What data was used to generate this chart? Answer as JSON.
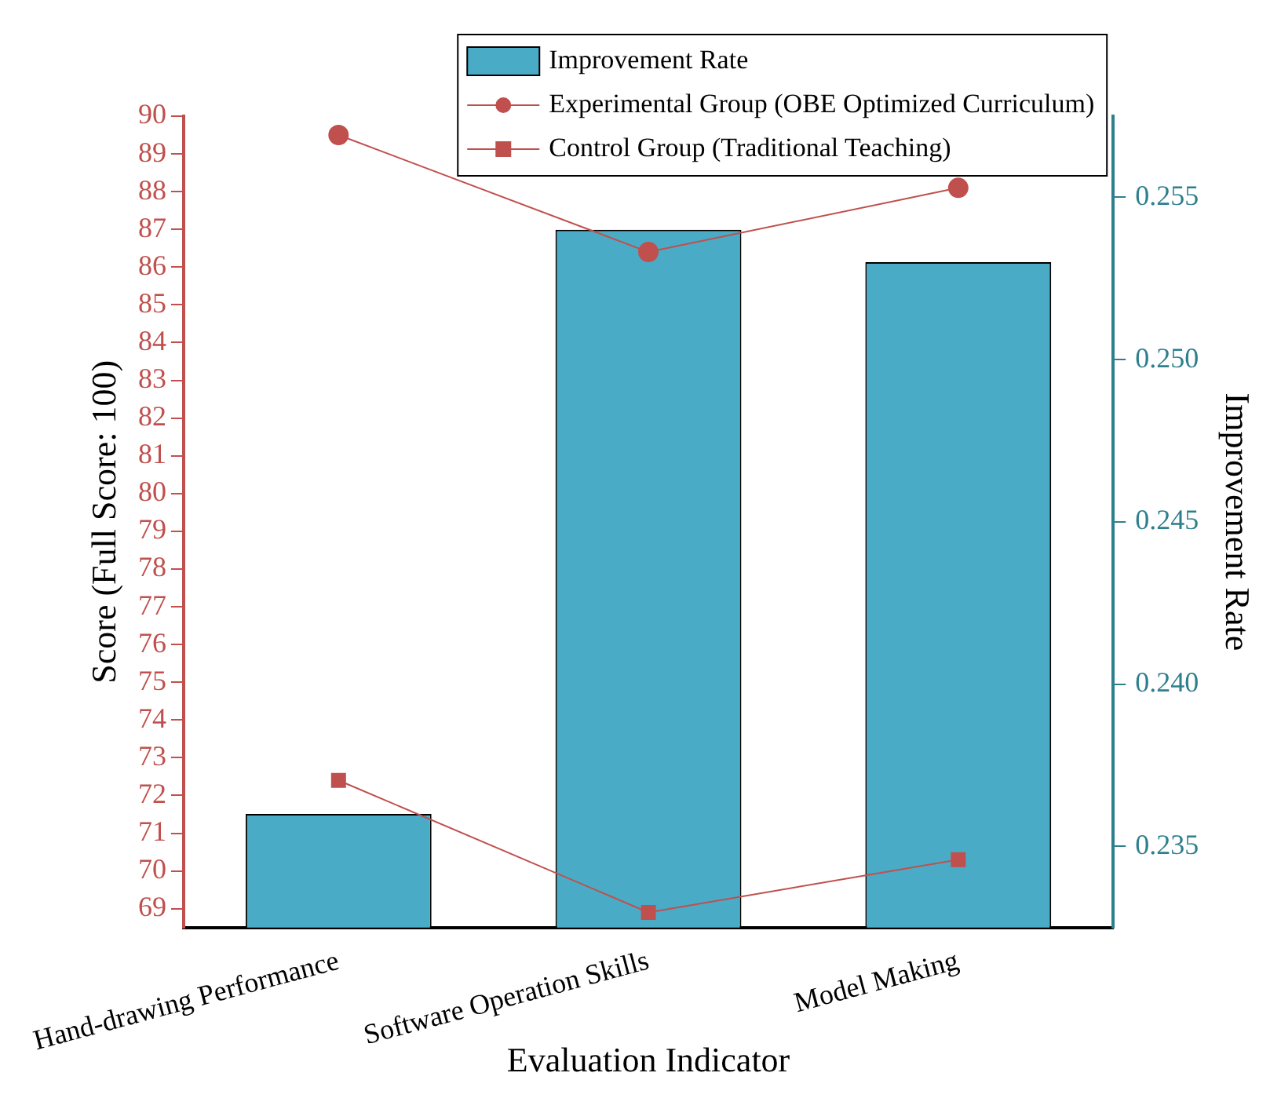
{
  "chart_data": {
    "type": "bar",
    "xlabel": "Evaluation Indicator",
    "ylabel": "Score (Full Score: 100)",
    "y2label": "Improvement Rate",
    "categories": [
      "Hand-drawing Performance",
      "Software Operation Skills",
      "Model Making"
    ],
    "series": [
      {
        "name": "Improvement Rate",
        "axis": "y2",
        "color": "#4aabc6",
        "values": [
          0.236,
          0.254,
          0.253
        ]
      },
      {
        "name": "Experimental Group (OBE Optimized Curriculum)",
        "type": "line",
        "color": "#c0504d",
        "marker": "circle",
        "values": [
          89.5,
          86.4,
          88.1
        ]
      },
      {
        "name": "Control Group (Traditional Teaching)",
        "type": "line",
        "color": "#c0504d",
        "marker": "square",
        "values": [
          72.4,
          68.9,
          70.3
        ]
      }
    ],
    "ylim": [
      68.5,
      90
    ],
    "yticks": [
      69,
      70,
      71,
      72,
      73,
      74,
      75,
      76,
      77,
      78,
      79,
      80,
      81,
      82,
      83,
      84,
      85,
      86,
      87,
      88,
      89,
      90
    ],
    "y2lim": [
      0.2325,
      0.2575
    ],
    "y2ticks": [
      {
        "value": 0.235,
        "label": "0.235"
      },
      {
        "value": 0.24,
        "label": "0.240"
      },
      {
        "value": 0.245,
        "label": "0.245"
      },
      {
        "value": 0.25,
        "label": "0.250"
      },
      {
        "value": 0.255,
        "label": "0.255"
      }
    ],
    "grid": false,
    "legend": "top right"
  }
}
